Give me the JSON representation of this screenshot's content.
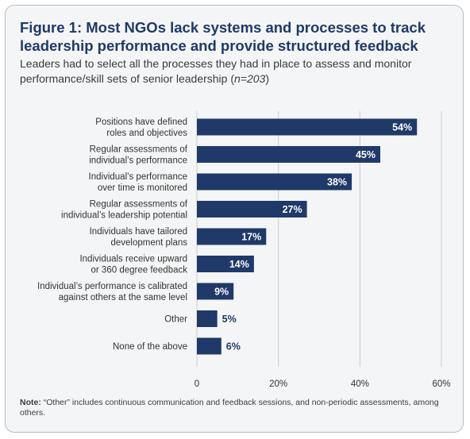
{
  "figure": {
    "title": "Figure 1: Most NGOs lack systems and processes to track leadership performance and provide structured feedback",
    "subtitle_main": "Leaders had to select all the processes they had in place to assess and monitor performance/skill sets of senior leadership (",
    "subtitle_n": "n=203",
    "subtitle_end": ")",
    "note_label": "Note:",
    "note_text": " “Other” includes continuous communication and feedback sessions, and non-periodic assessments, among others."
  },
  "colors": {
    "bar": "#1f3a68",
    "inside_label": "#ffffff",
    "outside_label": "#1f3a68",
    "grid": "#c8ccd1",
    "text": "#333333"
  },
  "chart_data": {
    "type": "bar",
    "orientation": "horizontal",
    "title": "Figure 1: Most NGOs lack systems and processes to track leadership performance and provide structured feedback",
    "categories": [
      [
        "Positions have defined",
        "roles and objectives"
      ],
      [
        "Regular assessments of",
        "individual’s performance"
      ],
      [
        "Individual’s performance",
        "over time is monitored"
      ],
      [
        "Regular assessments of",
        "individual’s leadership potential"
      ],
      [
        "Individuals have tailored",
        "development plans"
      ],
      [
        "Individuals receive upward",
        "or 360 degree feedback"
      ],
      [
        "Individual’s performance is calibrated",
        "against others at the same level"
      ],
      [
        "Other"
      ],
      [
        "None of the above"
      ]
    ],
    "values": [
      54,
      45,
      38,
      27,
      17,
      14,
      9,
      5,
      6
    ],
    "data_labels": [
      "54%",
      "45%",
      "38%",
      "27%",
      "17%",
      "14%",
      "9%",
      "5%",
      "6%"
    ],
    "xlim": [
      0,
      60
    ],
    "ticks": [
      0,
      20,
      40,
      60
    ],
    "tick_labels": [
      "0",
      "20%",
      "40%",
      "60%"
    ],
    "grid": "vertical"
  }
}
